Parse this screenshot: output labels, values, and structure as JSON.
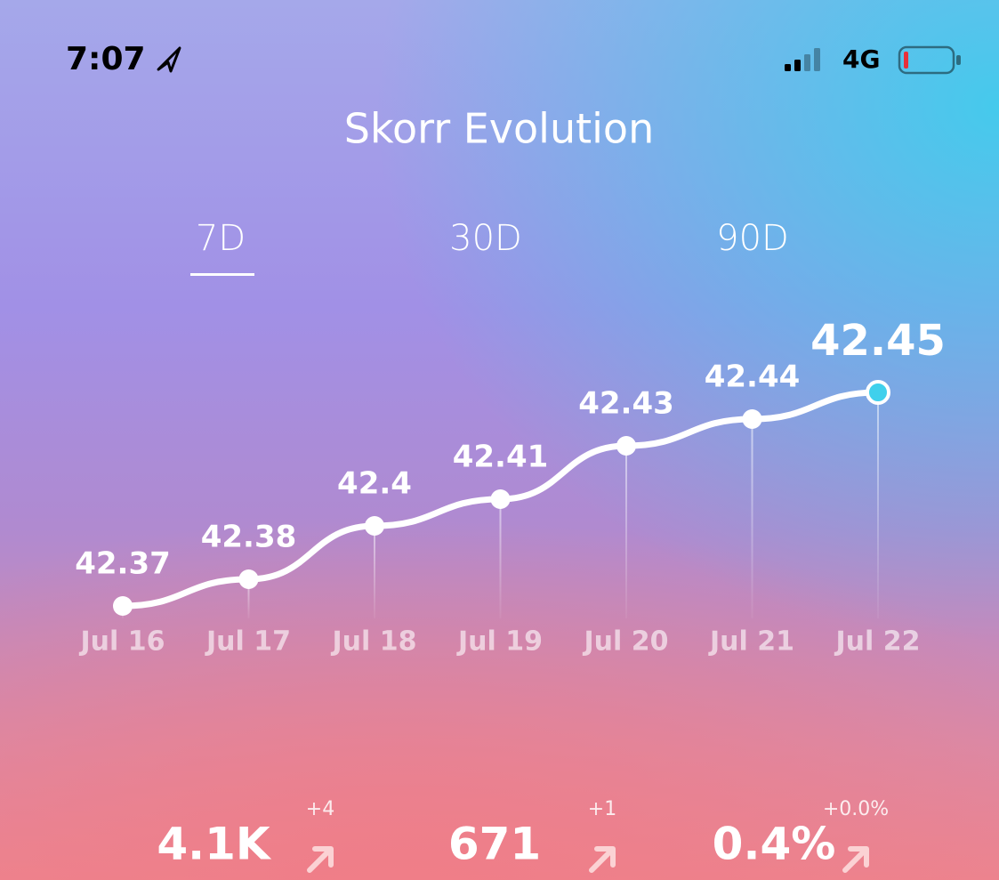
{
  "status_bar": {
    "time": "7:07",
    "network": "4G"
  },
  "title": "Skorr Evolution",
  "tabs": [
    "7D",
    "30D",
    "90D"
  ],
  "chart_data": {
    "type": "line",
    "categories": [
      "Jul 16",
      "Jul 17",
      "Jul 18",
      "Jul 19",
      "Jul 20",
      "Jul 21",
      "Jul 22"
    ],
    "values": [
      42.37,
      42.38,
      42.4,
      42.41,
      42.43,
      42.44,
      42.45
    ],
    "color": "#ffffff"
  },
  "stats": [
    {
      "value": "4.1K",
      "change": "+4"
    },
    {
      "value": "671",
      "change": "+1"
    },
    {
      "value": "0.4%",
      "change": "+0.0%"
    }
  ]
}
